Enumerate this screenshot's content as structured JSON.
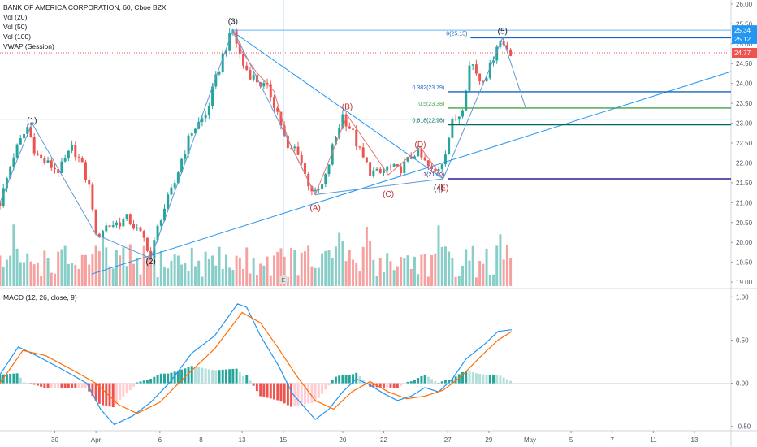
{
  "header": {
    "symbol_line": "BANK OF AMERICA CORPORATION, 60, Cboe BZX",
    "indicators": [
      "Vol (20)",
      "Vol (50)",
      "Vol (100)",
      "VWAP (Session)"
    ]
  },
  "macd_legend": "MACD (12, 26, close, 9)",
  "colors": {
    "up": "#26a69a",
    "down": "#ef5350",
    "macd_line": "#2196f3",
    "signal_line": "#ff6d00",
    "hist_pos_strong": "#26a69a",
    "hist_pos_weak": "#b2dfdb",
    "hist_neg_strong": "#ef5350",
    "hist_neg_weak": "#ffcdd2",
    "wave_line": "#5b9bd5",
    "abc_line": "#e57373",
    "trend_line": "#2196f3",
    "fib_blue": "#1565c0",
    "fib_green": "#43a047",
    "fib_teal": "#00695c",
    "fib_purple": "#311b92",
    "vwap": "#e91e63"
  },
  "chart_data": [
    {
      "type": "candlestick",
      "title": "BANK OF AMERICA CORPORATION, 60, Cboe BZX",
      "ylim": [
        18.9,
        26.1
      ],
      "xlim": [
        0,
        160
      ],
      "yticks": [
        19.0,
        19.5,
        20.0,
        20.5,
        21.0,
        21.5,
        22.0,
        22.5,
        23.0,
        23.5,
        24.0,
        24.5,
        25.0,
        25.5,
        26.0
      ],
      "ytick_labels": [
        "19.00",
        "19.50",
        "20.00",
        "20.50",
        "21.00",
        "21.50",
        "22.00",
        "22.50",
        "23.00",
        "23.50",
        "24.00",
        "24.50",
        "25.00",
        "25.50",
        "26.00"
      ],
      "xticks": [
        {
          "x": 12,
          "label": "30"
        },
        {
          "x": 21,
          "label": "Apr"
        },
        {
          "x": 35,
          "label": "6"
        },
        {
          "x": 44,
          "label": "8"
        },
        {
          "x": 53,
          "label": "13"
        },
        {
          "x": 62,
          "label": "15"
        },
        {
          "x": 75,
          "label": "20"
        },
        {
          "x": 84,
          "label": "22"
        },
        {
          "x": 98,
          "label": "27"
        },
        {
          "x": 107,
          "label": "29"
        },
        {
          "x": 116,
          "label": "May"
        },
        {
          "x": 125,
          "label": "5"
        },
        {
          "x": 134,
          "label": "7"
        },
        {
          "x": 143,
          "label": "11"
        },
        {
          "x": 152,
          "label": "13"
        }
      ],
      "last_price": 24.77,
      "price_badges": [
        {
          "value": 25.34,
          "label": "25.34",
          "color": "#2196f3"
        },
        {
          "value": 25.12,
          "label": "25.12",
          "color": "#2196f3"
        },
        {
          "value": 24.77,
          "label": "24.77",
          "color": "#ef5350"
        }
      ],
      "price_path": [
        [
          0,
          21.0
        ],
        [
          3,
          22.2
        ],
        [
          6,
          22.9
        ],
        [
          8,
          22.2
        ],
        [
          10,
          22.0
        ],
        [
          13,
          21.8
        ],
        [
          16,
          22.4
        ],
        [
          18,
          21.9
        ],
        [
          20,
          21.2
        ],
        [
          21,
          20.1
        ],
        [
          23,
          20.4
        ],
        [
          26,
          20.5
        ],
        [
          28,
          20.6
        ],
        [
          30,
          20.3
        ],
        [
          32,
          20.0
        ],
        [
          33,
          19.6
        ],
        [
          35,
          20.6
        ],
        [
          38,
          21.4
        ],
        [
          40,
          22.2
        ],
        [
          42,
          22.8
        ],
        [
          45,
          23.2
        ],
        [
          47,
          24.0
        ],
        [
          49,
          24.8
        ],
        [
          51,
          25.35
        ],
        [
          53,
          24.5
        ],
        [
          55,
          24.2
        ],
        [
          57,
          24.0
        ],
        [
          59,
          23.8
        ],
        [
          61,
          23.2
        ],
        [
          63,
          22.3
        ],
        [
          65,
          22.4
        ],
        [
          67,
          21.6
        ],
        [
          69,
          21.2
        ],
        [
          71,
          21.5
        ],
        [
          73,
          22.5
        ],
        [
          75,
          23.2
        ],
        [
          77,
          22.8
        ],
        [
          79,
          22.2
        ],
        [
          81,
          21.8
        ],
        [
          83,
          21.7
        ],
        [
          85,
          21.9
        ],
        [
          87,
          21.8
        ],
        [
          89,
          22.0
        ],
        [
          91,
          22.3
        ],
        [
          93,
          22.0
        ],
        [
          95,
          21.7
        ],
        [
          97,
          22.1
        ],
        [
          99,
          23.0
        ],
        [
          101,
          23.3
        ],
        [
          103,
          24.6
        ],
        [
          105,
          24.1
        ],
        [
          107,
          24.3
        ],
        [
          109,
          25.1
        ],
        [
          111,
          24.9
        ],
        [
          112,
          24.77
        ]
      ],
      "volume_ylim": [
        0,
        3.5
      ],
      "wave_labels": [
        {
          "text": "(1)",
          "x": 7,
          "y": 23.0
        },
        {
          "text": "(2)",
          "x": 33,
          "y": 19.45
        },
        {
          "text": "(3)",
          "x": 51,
          "y": 25.5
        },
        {
          "text": "(4)",
          "x": 96,
          "y": 21.3
        },
        {
          "text": "(5)",
          "x": 110,
          "y": 25.25
        },
        {
          "text": "(A)",
          "x": 69,
          "y": 20.8
        },
        {
          "text": "(B)",
          "x": 76,
          "y": 23.35
        },
        {
          "text": "(C)",
          "x": 85,
          "y": 21.15
        },
        {
          "text": "(D)",
          "x": 92,
          "y": 22.4
        },
        {
          "text": "(E)",
          "x": 97,
          "y": 21.3
        }
      ],
      "fib_levels": [
        {
          "label": "0(25.15)",
          "value": 25.15
        },
        {
          "label": "0.382(23.79)",
          "value": 23.79
        },
        {
          "label": "0.5(23.38)",
          "value": 23.38
        },
        {
          "label": "0.618(22.96)",
          "value": 22.96
        },
        {
          "label": "1(21.60)",
          "value": 21.6
        }
      ]
    },
    {
      "type": "line",
      "title": "MACD (12, 26, close, 9)",
      "ylim": [
        -0.55,
        1.05
      ],
      "yticks": [
        -0.5,
        0.0,
        0.5,
        1.0
      ],
      "ytick_labels": [
        "-0.50",
        "0.00",
        "0.50",
        "1.00"
      ],
      "series": [
        {
          "name": "MACD",
          "points": [
            [
              0,
              0.1
            ],
            [
              4,
              0.42
            ],
            [
              8,
              0.32
            ],
            [
              14,
              0.15
            ],
            [
              19,
              0.0
            ],
            [
              22,
              -0.3
            ],
            [
              25,
              -0.48
            ],
            [
              29,
              -0.38
            ],
            [
              33,
              -0.22
            ],
            [
              37,
              0.0
            ],
            [
              42,
              0.35
            ],
            [
              47,
              0.55
            ],
            [
              52,
              0.92
            ],
            [
              54,
              0.88
            ],
            [
              57,
              0.55
            ],
            [
              61,
              0.2
            ],
            [
              64,
              -0.12
            ],
            [
              67,
              -0.3
            ],
            [
              69,
              -0.42
            ],
            [
              72,
              -0.3
            ],
            [
              75,
              -0.1
            ],
            [
              78,
              0.05
            ],
            [
              81,
              -0.02
            ],
            [
              84,
              -0.12
            ],
            [
              87,
              -0.2
            ],
            [
              90,
              -0.15
            ],
            [
              93,
              -0.05
            ],
            [
              96,
              -0.1
            ],
            [
              99,
              0.05
            ],
            [
              102,
              0.28
            ],
            [
              106,
              0.45
            ],
            [
              109,
              0.6
            ],
            [
              112,
              0.62
            ]
          ]
        },
        {
          "name": "Signal",
          "points": [
            [
              0,
              0.0
            ],
            [
              5,
              0.38
            ],
            [
              10,
              0.32
            ],
            [
              16,
              0.15
            ],
            [
              21,
              0.0
            ],
            [
              26,
              -0.25
            ],
            [
              30,
              -0.35
            ],
            [
              35,
              -0.22
            ],
            [
              41,
              0.1
            ],
            [
              47,
              0.4
            ],
            [
              53,
              0.82
            ],
            [
              57,
              0.7
            ],
            [
              61,
              0.4
            ],
            [
              65,
              0.08
            ],
            [
              69,
              -0.2
            ],
            [
              73,
              -0.3
            ],
            [
              77,
              -0.1
            ],
            [
              81,
              0.02
            ],
            [
              85,
              -0.1
            ],
            [
              89,
              -0.18
            ],
            [
              93,
              -0.15
            ],
            [
              97,
              -0.08
            ],
            [
              101,
              0.08
            ],
            [
              105,
              0.3
            ],
            [
              109,
              0.5
            ],
            [
              112,
              0.6
            ]
          ]
        }
      ]
    }
  ]
}
